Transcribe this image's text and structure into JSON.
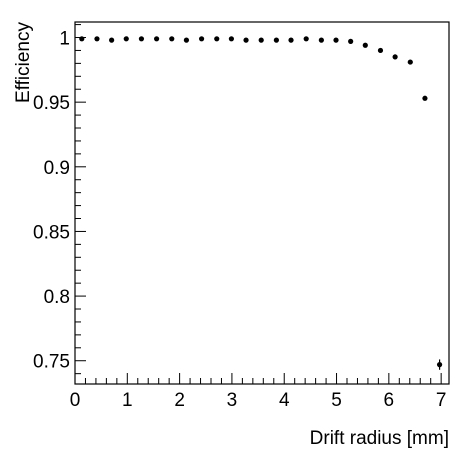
{
  "chart_data": {
    "type": "scatter",
    "xlabel": "Drift radius [mm]",
    "ylabel": "Efficiency",
    "xlim": [
      0,
      7.15
    ],
    "ylim": [
      0.732,
      1.012
    ],
    "xticks": [
      0,
      1,
      2,
      3,
      4,
      5,
      6,
      7
    ],
    "xtick_labels": [
      "0",
      "1",
      "2",
      "3",
      "4",
      "5",
      "6",
      "7"
    ],
    "yticks": [
      0.75,
      0.8,
      0.85,
      0.9,
      0.95,
      1.0
    ],
    "ytick_labels": [
      "0.75",
      "0.8",
      "0.85",
      "0.9",
      "0.95",
      "1"
    ],
    "grid": false,
    "points": [
      {
        "x": 0.13,
        "y": 0.999
      },
      {
        "x": 0.42,
        "y": 0.999
      },
      {
        "x": 0.7,
        "y": 0.998
      },
      {
        "x": 0.98,
        "y": 0.999
      },
      {
        "x": 1.27,
        "y": 0.999
      },
      {
        "x": 1.56,
        "y": 0.999
      },
      {
        "x": 1.85,
        "y": 0.999
      },
      {
        "x": 2.13,
        "y": 0.998
      },
      {
        "x": 2.42,
        "y": 0.999
      },
      {
        "x": 2.71,
        "y": 0.999
      },
      {
        "x": 2.99,
        "y": 0.999
      },
      {
        "x": 3.27,
        "y": 0.998
      },
      {
        "x": 3.56,
        "y": 0.998
      },
      {
        "x": 3.85,
        "y": 0.998
      },
      {
        "x": 4.13,
        "y": 0.998
      },
      {
        "x": 4.42,
        "y": 0.999
      },
      {
        "x": 4.71,
        "y": 0.998
      },
      {
        "x": 4.99,
        "y": 0.998
      },
      {
        "x": 5.27,
        "y": 0.997
      },
      {
        "x": 5.55,
        "y": 0.994
      },
      {
        "x": 5.84,
        "y": 0.99
      },
      {
        "x": 6.12,
        "y": 0.985
      },
      {
        "x": 6.41,
        "y": 0.981
      },
      {
        "x": 6.69,
        "y": 0.953
      },
      {
        "x": 6.97,
        "y": 0.747,
        "yerr": 0.004
      }
    ]
  }
}
